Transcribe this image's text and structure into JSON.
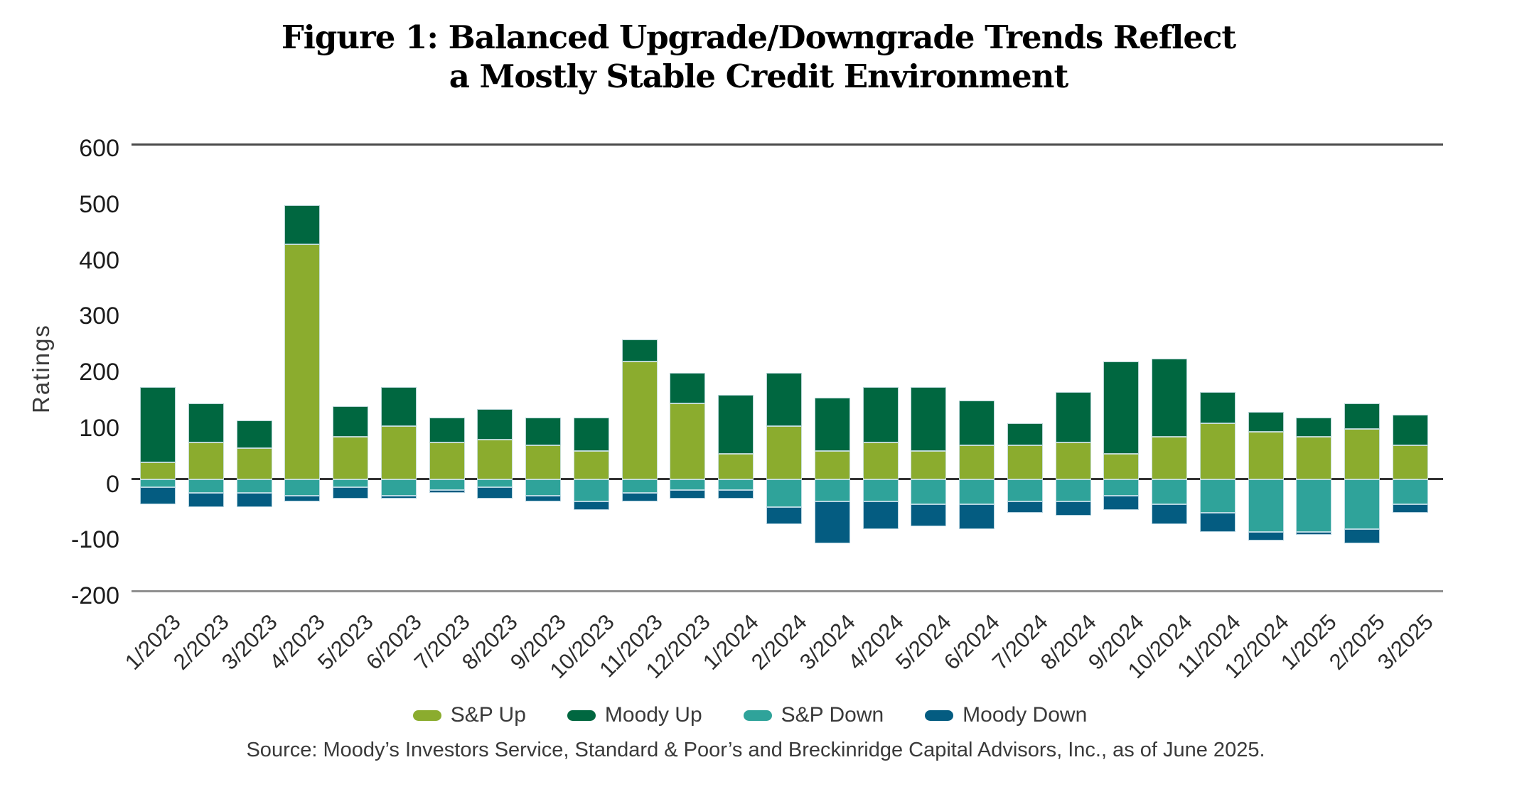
{
  "title_line1": "Figure 1: Balanced Upgrade/Downgrade Trends Reflect",
  "title_line2": "a Mostly Stable Credit Environment",
  "source_text": "Source: Moody’s Investors Service, Standard & Poor’s and Breckinridge Capital Advisors, Inc., as of June 2025.",
  "colors": {
    "sp_up": "#8BAC2E",
    "moody_up": "#006740",
    "sp_down": "#2FA39A",
    "moody_down": "#045C81",
    "zero_line": "#333333",
    "top_line": "#4a4a4a",
    "bottom_line": "#8f8f8f"
  },
  "chart_data": {
    "type": "bar",
    "subtype": "stacked-bar-with-negatives",
    "title": "Figure 1: Balanced Upgrade/Downgrade Trends Reflect a Mostly Stable Credit Environment",
    "xlabel": "",
    "ylabel": "Ratings",
    "ylim": [
      -200,
      600
    ],
    "yticks": [
      600,
      500,
      400,
      300,
      200,
      100,
      0,
      -100,
      -200
    ],
    "grid": "off",
    "legend_position": "bottom",
    "categories": [
      "1/2023",
      "2/2023",
      "3/2023",
      "4/2023",
      "5/2023",
      "6/2023",
      "7/2023",
      "8/2023",
      "9/2023",
      "10/2023",
      "11/2023",
      "12/2023",
      "1/2024",
      "2/2024",
      "3/2024",
      "4/2024",
      "5/2024",
      "6/2024",
      "7/2024",
      "8/2024",
      "9/2024",
      "10/2024",
      "11/2024",
      "12/2024",
      "1/2025",
      "2/2025",
      "3/2025"
    ],
    "series": [
      {
        "name": "S&P Up",
        "color": "#8BAC2E",
        "values": [
          30,
          65,
          55,
          420,
          75,
          95,
          65,
          70,
          60,
          50,
          210,
          135,
          45,
          95,
          50,
          65,
          50,
          60,
          60,
          65,
          45,
          75,
          100,
          85,
          75,
          90,
          60
        ]
      },
      {
        "name": "Moody Up",
        "color": "#006740",
        "values": [
          135,
          70,
          50,
          70,
          55,
          70,
          45,
          55,
          50,
          60,
          40,
          55,
          105,
          95,
          95,
          100,
          115,
          80,
          40,
          90,
          165,
          140,
          55,
          35,
          35,
          45,
          55
        ]
      },
      {
        "name": "S&P Down",
        "color": "#2FA39A",
        "values": [
          -15,
          -25,
          -25,
          -30,
          -15,
          -30,
          -20,
          -15,
          -30,
          -40,
          -25,
          -20,
          -20,
          -50,
          -40,
          -40,
          -45,
          -45,
          -40,
          -40,
          -30,
          -45,
          -60,
          -95,
          -95,
          -90,
          -45
        ]
      },
      {
        "name": "Moody Down",
        "color": "#045C81",
        "values": [
          -30,
          -25,
          -25,
          -10,
          -20,
          -5,
          -5,
          -20,
          -10,
          -15,
          -15,
          -15,
          -15,
          -30,
          -75,
          -50,
          -40,
          -45,
          -20,
          -25,
          -25,
          -35,
          -35,
          -15,
          -5,
          -25,
          -15
        ]
      }
    ]
  }
}
